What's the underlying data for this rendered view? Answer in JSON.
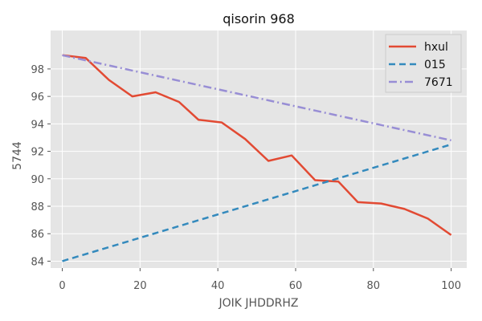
{
  "chart_data": {
    "type": "line",
    "title": "qisorin 968",
    "xlabel": "JOIK JHDDRHZ",
    "ylabel": "5744",
    "xlim": [
      -3,
      104
    ],
    "ylim": [
      83.5,
      100.8
    ],
    "xticks": [
      0,
      20,
      40,
      60,
      80,
      100
    ],
    "yticks": [
      84,
      86,
      88,
      90,
      92,
      94,
      96,
      98
    ],
    "grid": true,
    "legend_position": "top-right",
    "series": [
      {
        "name": "hxul",
        "style": "solid",
        "color": "#e24a33",
        "x": [
          0,
          6,
          12,
          18,
          24,
          30,
          35,
          41,
          47,
          53,
          59,
          65,
          71,
          76,
          82,
          88,
          94,
          100
        ],
        "y": [
          99.0,
          98.8,
          97.2,
          96.0,
          96.3,
          95.6,
          94.3,
          94.1,
          92.9,
          91.3,
          91.7,
          89.9,
          89.8,
          88.3,
          88.2,
          87.8,
          87.1,
          85.9
        ]
      },
      {
        "name": "015",
        "style": "dashed",
        "color": "#348abd",
        "x": [
          0,
          100
        ],
        "y": [
          84.0,
          92.5
        ]
      },
      {
        "name": "7671",
        "style": "dashdot",
        "color": "#988ed5",
        "x": [
          0,
          100
        ],
        "y": [
          99.0,
          92.8
        ]
      }
    ]
  }
}
